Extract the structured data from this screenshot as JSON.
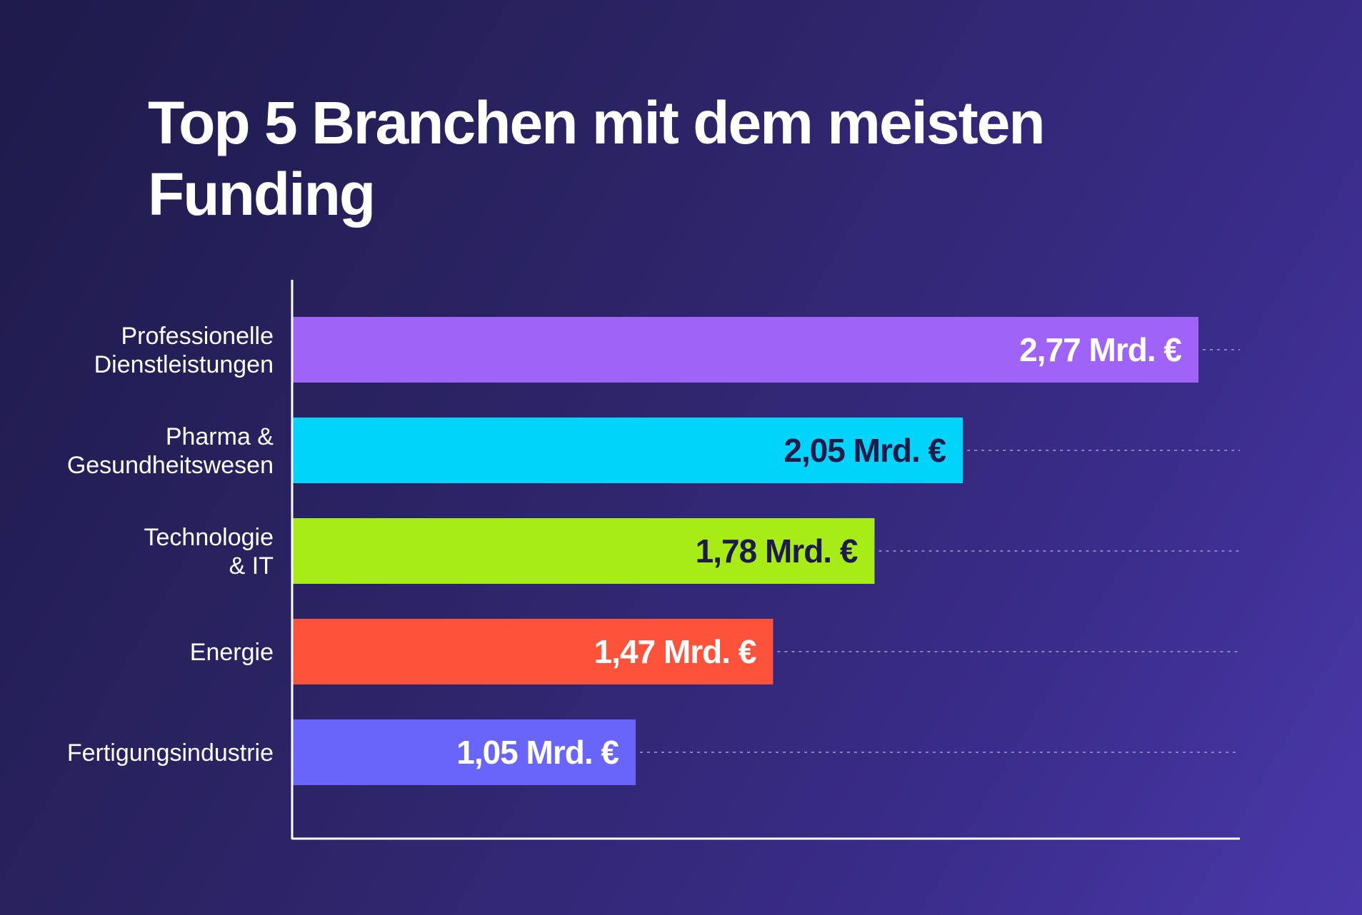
{
  "chart_data": {
    "type": "bar",
    "orientation": "horizontal",
    "title": "Top 5 Branchen mit dem meisten Funding",
    "categories": [
      [
        "Professionelle",
        "Dienstleistungen"
      ],
      [
        "Pharma &",
        "Gesundheitswesen"
      ],
      [
        "Technologie",
        "& IT"
      ],
      [
        "Energie"
      ],
      [
        "Fertigungsindustrie"
      ]
    ],
    "values": [
      2.77,
      2.05,
      1.78,
      1.47,
      1.05
    ],
    "value_labels": [
      "2,77 Mrd. €",
      "2,05 Mrd. €",
      "1,78 Mrd. €",
      "1,47 Mrd. €",
      "1,05 Mrd. €"
    ],
    "unit": "Mrd. €",
    "colors": [
      "#9f63f8",
      "#00d4fa",
      "#a8ec17",
      "#fe533b",
      "#6965fb"
    ],
    "label_colors": [
      "#ffffff",
      "#1e1b4b",
      "#1e1b4b",
      "#ffffff",
      "#ffffff"
    ],
    "xlim": [
      0,
      2.77
    ],
    "grid": false,
    "dotted_guides": true
  }
}
